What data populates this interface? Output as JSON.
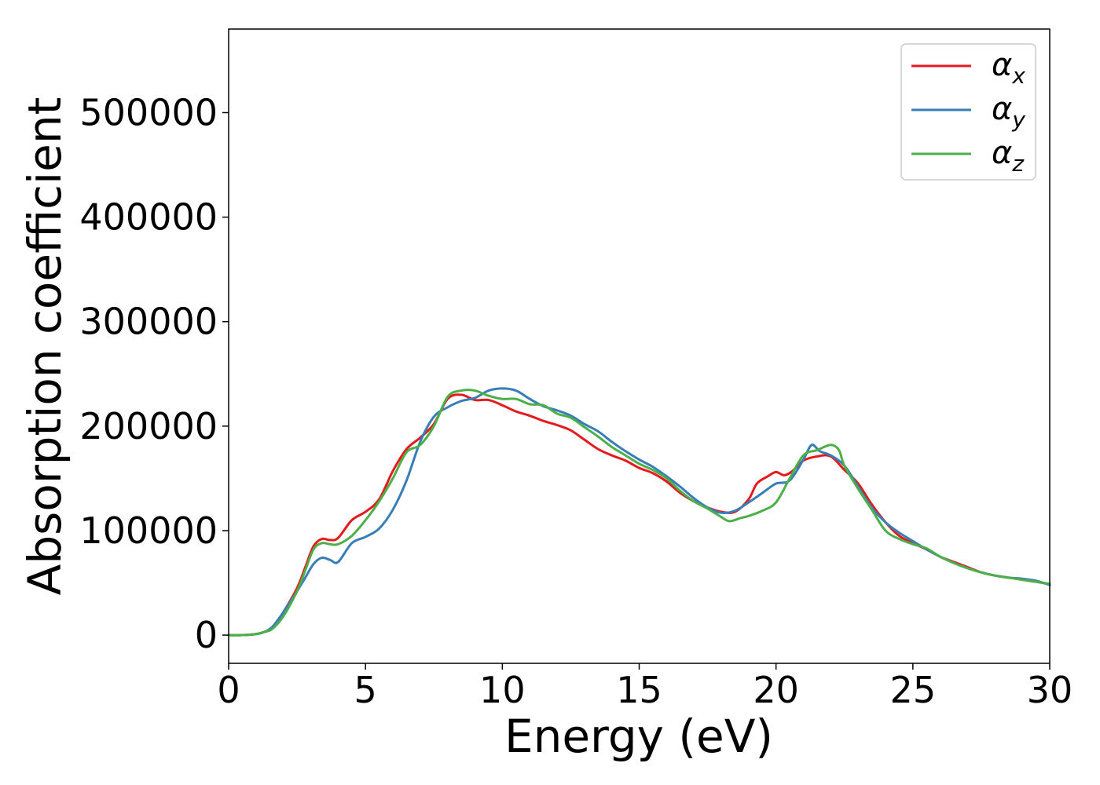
{
  "chart_data": {
    "type": "line",
    "title": "",
    "xlabel": "Energy (eV)",
    "ylabel": "Absorption coefficient",
    "xlim": [
      0,
      30
    ],
    "ylim": [
      -27000,
      580000
    ],
    "xticks": [
      0,
      5,
      10,
      15,
      20,
      25,
      30
    ],
    "yticks": [
      0,
      100000,
      200000,
      300000,
      400000,
      500000
    ],
    "grid": false,
    "legend_position": "top-right",
    "series": [
      {
        "name": "αx",
        "label_base": "α",
        "label_sub": "x",
        "color": "#e41a1c",
        "points": [
          [
            0,
            0
          ],
          [
            0.5,
            0
          ],
          [
            1.0,
            1000
          ],
          [
            1.3,
            3000
          ],
          [
            1.6,
            7000
          ],
          [
            2.0,
            22000
          ],
          [
            2.5,
            45000
          ],
          [
            2.8,
            65000
          ],
          [
            3.1,
            85000
          ],
          [
            3.4,
            92000
          ],
          [
            3.7,
            91000
          ],
          [
            4.0,
            93000
          ],
          [
            4.5,
            110000
          ],
          [
            5.0,
            118000
          ],
          [
            5.5,
            130000
          ],
          [
            6.0,
            157000
          ],
          [
            6.5,
            178000
          ],
          [
            7.0,
            189000
          ],
          [
            7.5,
            202000
          ],
          [
            8.0,
            226000
          ],
          [
            8.5,
            230000
          ],
          [
            9.0,
            225000
          ],
          [
            9.5,
            225000
          ],
          [
            10.0,
            220000
          ],
          [
            10.5,
            214000
          ],
          [
            11.0,
            210000
          ],
          [
            11.5,
            205000
          ],
          [
            12.0,
            201000
          ],
          [
            12.5,
            196000
          ],
          [
            13.0,
            187000
          ],
          [
            13.5,
            178000
          ],
          [
            14.0,
            172000
          ],
          [
            14.5,
            167000
          ],
          [
            15.0,
            160000
          ],
          [
            15.5,
            155000
          ],
          [
            16.0,
            147000
          ],
          [
            16.5,
            136000
          ],
          [
            17.0,
            128000
          ],
          [
            17.5,
            122000
          ],
          [
            18.0,
            118000
          ],
          [
            18.5,
            118000
          ],
          [
            19.0,
            130000
          ],
          [
            19.3,
            145000
          ],
          [
            19.7,
            152000
          ],
          [
            20.0,
            156000
          ],
          [
            20.3,
            153000
          ],
          [
            20.6,
            157000
          ],
          [
            21.0,
            167000
          ],
          [
            21.5,
            171000
          ],
          [
            22.0,
            171000
          ],
          [
            22.5,
            158000
          ],
          [
            23.0,
            145000
          ],
          [
            23.5,
            125000
          ],
          [
            24.0,
            108000
          ],
          [
            24.5,
            95000
          ],
          [
            25.0,
            88000
          ],
          [
            25.5,
            82000
          ],
          [
            26.0,
            75000
          ],
          [
            26.5,
            70000
          ],
          [
            27.0,
            65000
          ],
          [
            27.5,
            60000
          ],
          [
            28.0,
            57000
          ],
          [
            28.5,
            55000
          ],
          [
            29.0,
            53000
          ],
          [
            29.5,
            51000
          ],
          [
            30.0,
            49000
          ]
        ]
      },
      {
        "name": "αy",
        "label_base": "α",
        "label_sub": "y",
        "color": "#377eb8",
        "points": [
          [
            0,
            0
          ],
          [
            0.5,
            0
          ],
          [
            1.0,
            1000
          ],
          [
            1.3,
            3000
          ],
          [
            1.6,
            8000
          ],
          [
            2.0,
            22000
          ],
          [
            2.5,
            42000
          ],
          [
            2.8,
            55000
          ],
          [
            3.1,
            68000
          ],
          [
            3.4,
            74000
          ],
          [
            3.7,
            72000
          ],
          [
            4.0,
            70000
          ],
          [
            4.5,
            88000
          ],
          [
            5.0,
            94000
          ],
          [
            5.5,
            102000
          ],
          [
            6.0,
            120000
          ],
          [
            6.5,
            148000
          ],
          [
            7.0,
            185000
          ],
          [
            7.5,
            209000
          ],
          [
            8.0,
            218000
          ],
          [
            8.5,
            224000
          ],
          [
            9.0,
            227000
          ],
          [
            9.5,
            234000
          ],
          [
            10.0,
            236000
          ],
          [
            10.5,
            234000
          ],
          [
            11.0,
            226000
          ],
          [
            11.5,
            219000
          ],
          [
            12.0,
            215000
          ],
          [
            12.5,
            210000
          ],
          [
            13.0,
            202000
          ],
          [
            13.5,
            195000
          ],
          [
            14.0,
            185000
          ],
          [
            14.5,
            176000
          ],
          [
            15.0,
            168000
          ],
          [
            15.5,
            161000
          ],
          [
            16.0,
            152000
          ],
          [
            16.5,
            142000
          ],
          [
            17.0,
            131000
          ],
          [
            17.5,
            122000
          ],
          [
            18.0,
            117000
          ],
          [
            18.5,
            119000
          ],
          [
            19.0,
            127000
          ],
          [
            19.5,
            136000
          ],
          [
            20.0,
            145000
          ],
          [
            20.5,
            148000
          ],
          [
            21.0,
            168000
          ],
          [
            21.3,
            182000
          ],
          [
            21.6,
            176000
          ],
          [
            22.0,
            172000
          ],
          [
            22.5,
            162000
          ],
          [
            23.0,
            142000
          ],
          [
            23.5,
            122000
          ],
          [
            24.0,
            108000
          ],
          [
            24.5,
            98000
          ],
          [
            25.0,
            90000
          ],
          [
            25.5,
            82000
          ],
          [
            26.0,
            75000
          ],
          [
            26.5,
            69000
          ],
          [
            27.0,
            64000
          ],
          [
            27.5,
            60000
          ],
          [
            28.0,
            57000
          ],
          [
            28.5,
            55000
          ],
          [
            29.0,
            54000
          ],
          [
            29.5,
            52000
          ],
          [
            30.0,
            48000
          ]
        ]
      },
      {
        "name": "αz",
        "label_base": "α",
        "label_sub": "z",
        "color": "#4daf4a",
        "points": [
          [
            0,
            0
          ],
          [
            0.5,
            0
          ],
          [
            1.0,
            1000
          ],
          [
            1.3,
            3000
          ],
          [
            1.6,
            6000
          ],
          [
            2.0,
            18000
          ],
          [
            2.5,
            42000
          ],
          [
            2.8,
            62000
          ],
          [
            3.1,
            82000
          ],
          [
            3.4,
            88000
          ],
          [
            3.7,
            87000
          ],
          [
            4.0,
            87000
          ],
          [
            4.5,
            95000
          ],
          [
            5.0,
            110000
          ],
          [
            5.5,
            128000
          ],
          [
            6.0,
            150000
          ],
          [
            6.5,
            175000
          ],
          [
            7.0,
            182000
          ],
          [
            7.5,
            200000
          ],
          [
            8.0,
            228000
          ],
          [
            8.5,
            234000
          ],
          [
            9.0,
            234000
          ],
          [
            9.5,
            229000
          ],
          [
            10.0,
            226000
          ],
          [
            10.5,
            226000
          ],
          [
            11.0,
            221000
          ],
          [
            11.5,
            220000
          ],
          [
            12.0,
            212000
          ],
          [
            12.5,
            208000
          ],
          [
            13.0,
            199000
          ],
          [
            13.5,
            190000
          ],
          [
            14.0,
            180000
          ],
          [
            14.5,
            172000
          ],
          [
            15.0,
            164000
          ],
          [
            15.5,
            158000
          ],
          [
            16.0,
            150000
          ],
          [
            16.5,
            138000
          ],
          [
            17.0,
            128000
          ],
          [
            17.5,
            121000
          ],
          [
            18.0,
            113000
          ],
          [
            18.3,
            109000
          ],
          [
            18.7,
            112000
          ],
          [
            19.0,
            114000
          ],
          [
            19.5,
            119000
          ],
          [
            20.0,
            127000
          ],
          [
            20.5,
            150000
          ],
          [
            21.0,
            172000
          ],
          [
            21.5,
            177000
          ],
          [
            22.0,
            182000
          ],
          [
            22.3,
            177000
          ],
          [
            22.5,
            162000
          ],
          [
            23.0,
            140000
          ],
          [
            23.5,
            120000
          ],
          [
            24.0,
            100000
          ],
          [
            24.5,
            92000
          ],
          [
            25.0,
            87000
          ],
          [
            25.5,
            83000
          ],
          [
            26.0,
            75000
          ],
          [
            26.5,
            69000
          ],
          [
            27.0,
            64000
          ],
          [
            27.5,
            60000
          ],
          [
            28.0,
            57000
          ],
          [
            28.5,
            55000
          ],
          [
            29.0,
            53000
          ],
          [
            29.5,
            51000
          ],
          [
            30.0,
            49000
          ]
        ]
      }
    ]
  }
}
